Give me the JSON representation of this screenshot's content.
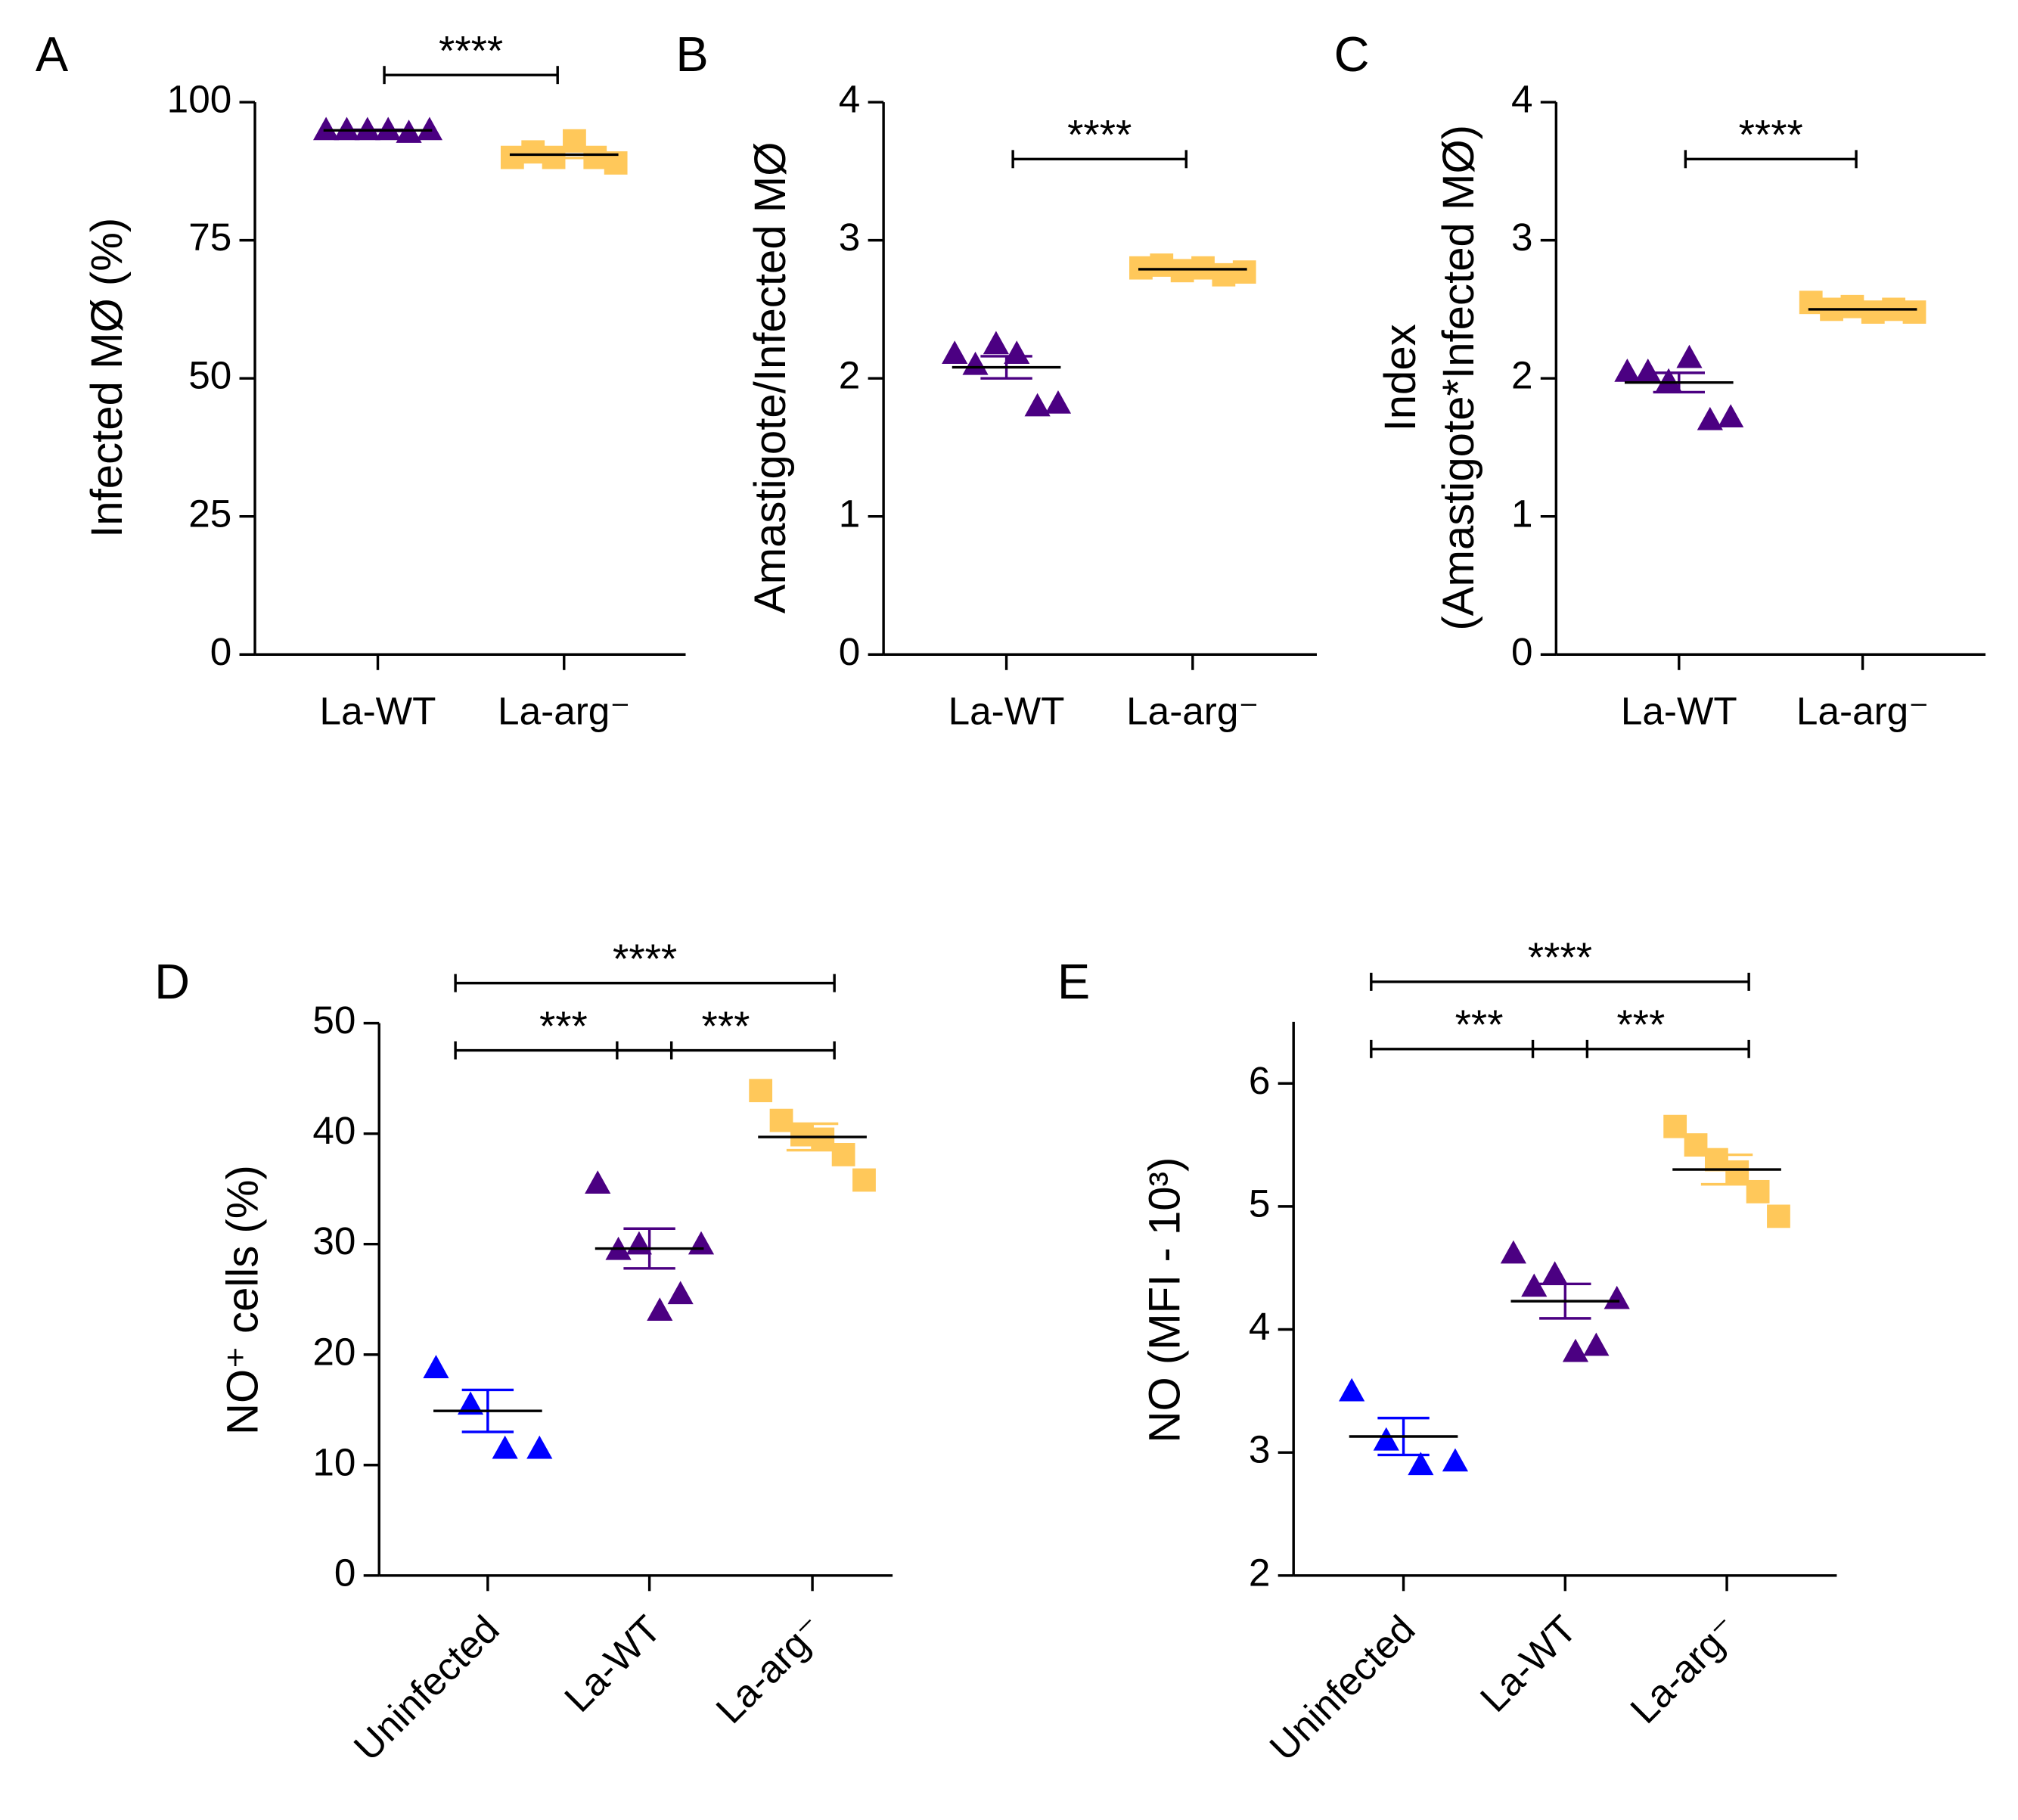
{
  "chart_data": [
    {
      "type": "dot",
      "panel": "A",
      "ylabel": [
        "Infected MØ (%)"
      ],
      "categories": [
        "La-WT",
        "La-arg⁻"
      ],
      "values": [
        [
          95,
          95,
          95,
          95,
          94.5,
          95
        ],
        [
          90,
          91,
          90,
          93,
          90,
          89
        ]
      ],
      "means": [
        94.9,
        90.5
      ],
      "sems": [
        0.1,
        0.6
      ],
      "colors": [
        "#4b0082",
        "#ffc85a"
      ],
      "markers": [
        "triangle",
        "square"
      ],
      "ylim": [
        0,
        100
      ],
      "yticks": [
        0,
        25,
        50,
        75,
        100
      ],
      "brackets": [
        {
          "between": [
            0,
            1
          ],
          "label": "****"
        }
      ]
    },
    {
      "type": "dot",
      "panel": "B",
      "ylabel": [
        "Amastigote/Infected MØ"
      ],
      "categories": [
        "La-WT",
        "La-arg⁻"
      ],
      "values": [
        [
          2.18,
          2.1,
          2.25,
          2.18,
          1.8,
          1.82
        ],
        [
          2.8,
          2.82,
          2.78,
          2.8,
          2.75,
          2.77
        ]
      ],
      "means": [
        2.08,
        2.79
      ],
      "sems": [
        0.08,
        0.01
      ],
      "colors": [
        "#4b0082",
        "#ffc85a"
      ],
      "markers": [
        "triangle",
        "square"
      ],
      "ylim": [
        0,
        4
      ],
      "yticks": [
        0,
        1,
        2,
        3,
        4
      ],
      "brackets": [
        {
          "between": [
            0,
            1
          ],
          "label": "****"
        }
      ]
    },
    {
      "type": "dot",
      "panel": "C",
      "ylabel": [
        "Index",
        "(Amastigote*Infected MØ)"
      ],
      "categories": [
        "La-WT",
        "La-arg⁻"
      ],
      "values": [
        [
          2.05,
          2.05,
          1.98,
          2.15,
          1.7,
          1.72
        ],
        [
          2.55,
          2.5,
          2.52,
          2.48,
          2.5,
          2.48
        ]
      ],
      "means": [
        1.97,
        2.5
      ],
      "sems": [
        0.07,
        0.01
      ],
      "colors": [
        "#4b0082",
        "#ffc85a"
      ],
      "markers": [
        "triangle",
        "square"
      ],
      "ylim": [
        0,
        4
      ],
      "yticks": [
        0,
        1,
        2,
        3,
        4
      ],
      "brackets": [
        {
          "between": [
            0,
            1
          ],
          "label": "****"
        }
      ]
    },
    {
      "type": "dot",
      "panel": "D",
      "ylabel": [
        "NO⁺ cells (%)"
      ],
      "categories": [
        "Uninfected",
        "La-WT",
        "La-arg⁻"
      ],
      "values": [
        [
          18.8,
          15.5,
          11.5,
          11.5
        ],
        [
          35.5,
          29.5,
          30,
          24,
          25.5,
          30
        ],
        [
          43.9,
          41.2,
          39.9,
          39.5,
          38.1,
          35.8
        ]
      ],
      "means": [
        14.9,
        29.6,
        39.7
      ],
      "sems": [
        1.9,
        1.8,
        1.2
      ],
      "colors": [
        "#0000ff",
        "#4b0082",
        "#ffc85a"
      ],
      "markers": [
        "triangle",
        "triangle",
        "square"
      ],
      "ylim": [
        0,
        50
      ],
      "yticks": [
        0,
        10,
        20,
        30,
        40,
        50
      ],
      "brackets": [
        {
          "between": [
            0,
            1
          ],
          "label": "***"
        },
        {
          "between": [
            1,
            2
          ],
          "label": "***"
        },
        {
          "between": [
            0,
            2
          ],
          "label": "****"
        }
      ]
    },
    {
      "type": "dot",
      "panel": "E",
      "ylabel": [
        "NO (MFI - 10³)"
      ],
      "categories": [
        "Uninfected",
        "La-WT",
        "La-arg⁻"
      ],
      "values": [
        [
          3.5,
          3.1,
          2.9,
          2.93
        ],
        [
          4.62,
          4.35,
          4.45,
          3.82,
          3.87,
          4.25
        ],
        [
          5.65,
          5.5,
          5.38,
          5.28,
          5.12,
          4.92
        ]
      ],
      "means": [
        3.13,
        4.23,
        5.3
      ],
      "sems": [
        0.15,
        0.14,
        0.12
      ],
      "colors": [
        "#0000ff",
        "#4b0082",
        "#ffc85a"
      ],
      "markers": [
        "triangle",
        "triangle",
        "square"
      ],
      "ylim": [
        2,
        6.5
      ],
      "yticks": [
        2,
        3,
        4,
        5,
        6
      ],
      "brackets": [
        {
          "between": [
            0,
            1
          ],
          "label": "***"
        },
        {
          "between": [
            1,
            2
          ],
          "label": "***"
        },
        {
          "between": [
            0,
            2
          ],
          "label": "****"
        }
      ]
    }
  ]
}
